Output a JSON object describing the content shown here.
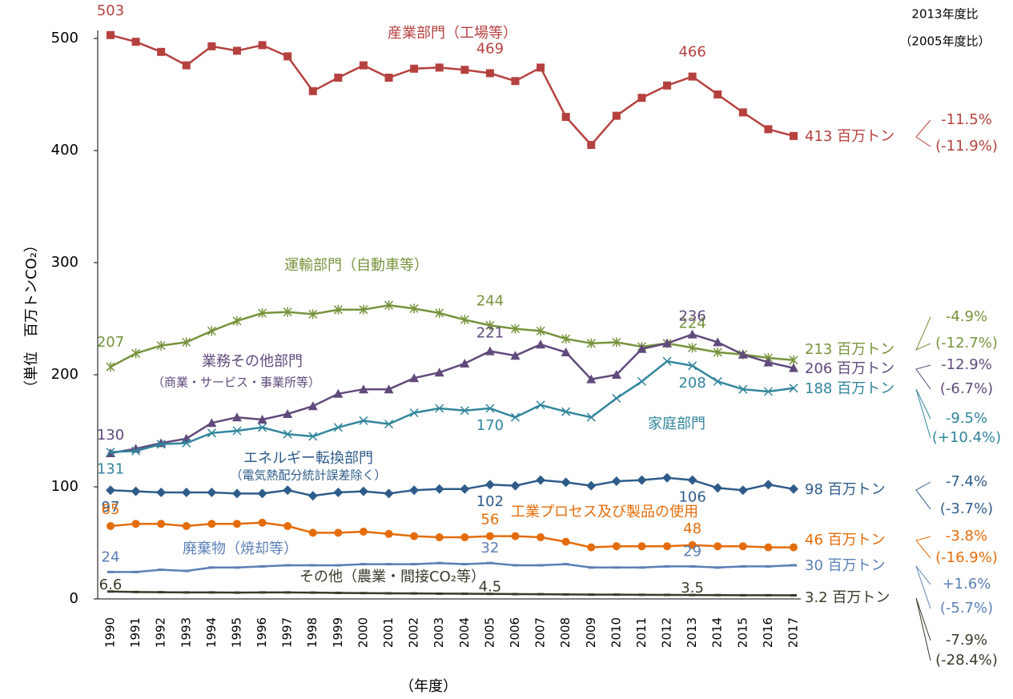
{
  "chart_data": {
    "type": "line",
    "y_label": "（単位　百万トンCO₂）",
    "x_label": "（年度）",
    "compare_header_2013": "2013年度比",
    "compare_header_2005": "（2005年度比）",
    "categories": [
      "1990",
      "1991",
      "1992",
      "1993",
      "1994",
      "1995",
      "1996",
      "1997",
      "1998",
      "1999",
      "2000",
      "2001",
      "2002",
      "2003",
      "2004",
      "2005",
      "2006",
      "2007",
      "2008",
      "2009",
      "2010",
      "2011",
      "2012",
      "2013",
      "2014",
      "2015",
      "2016",
      "2017"
    ],
    "ylim": [
      0,
      500
    ],
    "yticks": [
      0,
      100,
      200,
      300,
      400,
      500
    ],
    "series": [
      {
        "name": "産業部門（工場等）",
        "color": "#b5413f",
        "marker": "square",
        "values": [
          503,
          497,
          488,
          476,
          493,
          489,
          494,
          484,
          453,
          465,
          476,
          465,
          473,
          474,
          472,
          469,
          462,
          474,
          430,
          405,
          431,
          447,
          458,
          466,
          450,
          434,
          419,
          413
        ],
        "labeled_points": [
          0,
          15,
          23
        ],
        "end_label": "413 百万トン",
        "change_2013": "-11.5%",
        "change_2005": "(-11.9%)"
      },
      {
        "name": "運輸部門（自動車等）",
        "color": "#77933c",
        "marker": "asterisk",
        "values": [
          207,
          219,
          226,
          229,
          239,
          248,
          255,
          256,
          254,
          258,
          258,
          262,
          259,
          255,
          249,
          244,
          241,
          239,
          232,
          228,
          229,
          225,
          228,
          224,
          220,
          218,
          215,
          213
        ],
        "labeled_points": [
          0,
          15,
          23
        ],
        "end_label": "213 百万トン",
        "change_2013": "-4.9%",
        "change_2005": "(-12.7%)"
      },
      {
        "name": "業務その他部門",
        "note": "（商業・サービス・事業所等）",
        "color": "#604a7b",
        "marker": "triangle",
        "values": [
          130,
          134,
          139,
          143,
          157,
          162,
          160,
          165,
          172,
          183,
          187,
          187,
          197,
          202,
          210,
          221,
          217,
          227,
          220,
          196,
          200,
          223,
          228,
          236,
          229,
          218,
          211,
          206
        ],
        "labeled_points": [
          0,
          15,
          23
        ],
        "end_label": "206 百万トン",
        "change_2013": "-12.9%",
        "change_2005": "(-6.7%)"
      },
      {
        "name": "家庭部門",
        "color": "#31859c",
        "marker": "cross",
        "values": [
          131,
          132,
          138,
          139,
          148,
          150,
          153,
          147,
          145,
          153,
          159,
          156,
          166,
          170,
          168,
          170,
          162,
          173,
          167,
          162,
          179,
          194,
          212,
          208,
          194,
          187,
          185,
          188
        ],
        "labeled_points": [
          0,
          15,
          23
        ],
        "end_label": "188 百万トン",
        "change_2013": "-9.5%",
        "change_2005": "(+10.4%)"
      },
      {
        "name": "エネルギー転換部門",
        "note": "（電気熱配分統計誤差除く）",
        "color": "#2e5c8a",
        "marker": "diamond",
        "values": [
          97,
          96,
          95,
          95,
          95,
          94,
          94,
          97,
          92,
          95,
          96,
          94,
          97,
          98,
          98,
          102,
          101,
          106,
          104,
          101,
          105,
          106,
          108,
          106,
          99,
          97,
          102,
          98
        ],
        "labeled_points": [
          0,
          15,
          23
        ],
        "end_label": "98 百万トン",
        "change_2013": "-7.4%",
        "change_2005": "(-3.7%)"
      },
      {
        "name": "工業プロセス及び製品の使用",
        "color": "#e46c0a",
        "marker": "circle",
        "values": [
          65,
          67,
          67,
          65,
          67,
          67,
          68,
          65,
          59,
          59,
          60,
          58,
          56,
          55,
          55,
          56,
          56,
          55,
          51,
          46,
          47,
          47,
          47,
          48,
          47,
          47,
          46,
          46
        ],
        "labeled_points": [
          0,
          15,
          23
        ],
        "end_label": "46 百万トン",
        "change_2013": "-3.8%",
        "change_2005": "(-16.9%)"
      },
      {
        "name": "廃棄物（焼却等）",
        "color": "#5b7fb6",
        "marker": "dash",
        "values": [
          24,
          24,
          26,
          25,
          28,
          28,
          29,
          30,
          30,
          30,
          31,
          31,
          31,
          32,
          31,
          32,
          30,
          30,
          31,
          28,
          28,
          28,
          29,
          29,
          28,
          29,
          29,
          30
        ],
        "labeled_points": [
          0,
          15,
          23
        ],
        "end_label": "30 百万トン",
        "change_2013": "+1.6%",
        "change_2005": "(-5.7%)"
      },
      {
        "name": "その他（農業・間接CO₂等）",
        "color": "#3a3a2a",
        "marker": "dash",
        "values": [
          6.6,
          6.2,
          6.0,
          5.8,
          5.8,
          5.6,
          5.8,
          5.8,
          5.6,
          5.4,
          5.2,
          5.0,
          4.9,
          4.7,
          4.6,
          4.5,
          4.3,
          4.2,
          4.0,
          3.8,
          3.8,
          3.7,
          3.6,
          3.5,
          3.4,
          3.3,
          3.3,
          3.2
        ],
        "labeled_points": [
          0,
          15,
          23
        ],
        "end_label": "3.2 百万トン",
        "change_2013": "-7.9%",
        "change_2005": "(-28.4%)"
      }
    ]
  }
}
